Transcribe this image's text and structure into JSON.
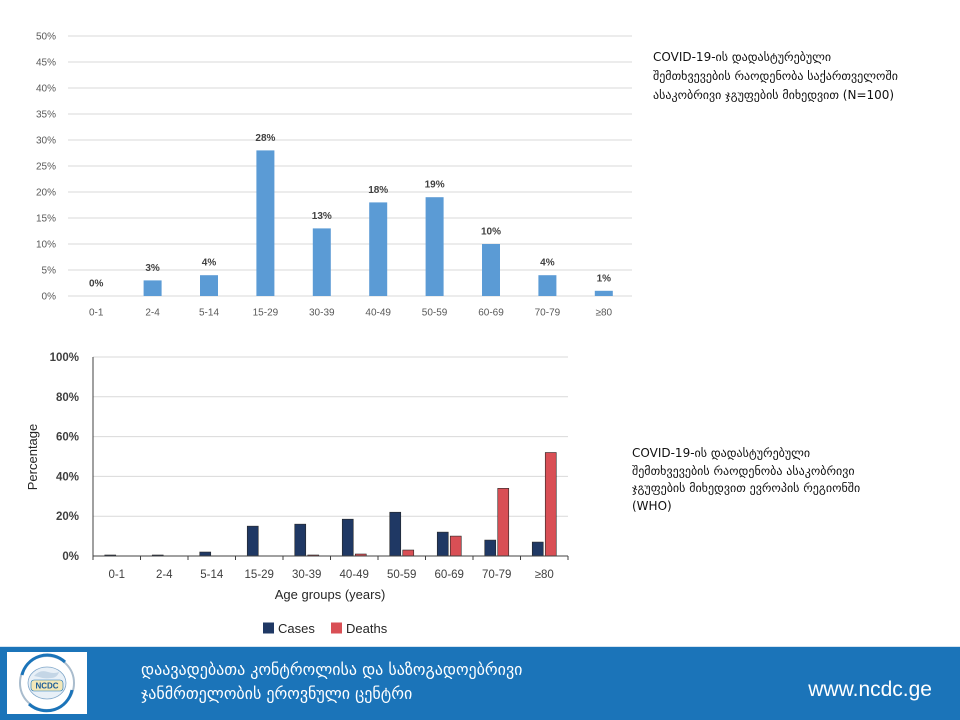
{
  "chart_data": [
    {
      "type": "bar",
      "categories": [
        "0-1",
        "2-4",
        "5-14",
        "15-29",
        "30-39",
        "40-49",
        "50-59",
        "60-69",
        "70-79",
        "≥80"
      ],
      "values": [
        0,
        3,
        4,
        28,
        13,
        18,
        19,
        10,
        4,
        1
      ],
      "data_labels": [
        "0%",
        "3%",
        "4%",
        "28%",
        "13%",
        "18%",
        "19%",
        "10%",
        "4%",
        "1%"
      ],
      "y_tick_labels": [
        "0%",
        "5%",
        "10%",
        "15%",
        "20%",
        "25%",
        "30%",
        "35%",
        "40%",
        "45%",
        "50%"
      ],
      "ylim": [
        0,
        50
      ],
      "grid": true,
      "color": "#5b9bd5"
    },
    {
      "type": "bar",
      "categories": [
        "0-1",
        "2-4",
        "5-14",
        "15-29",
        "30-39",
        "40-49",
        "50-59",
        "60-69",
        "70-79",
        "≥80"
      ],
      "series": [
        {
          "name": "Cases",
          "values": [
            0.5,
            0.5,
            2,
            15,
            16,
            18.5,
            22,
            12,
            8,
            7
          ],
          "color": "#1f3864"
        },
        {
          "name": "Deaths",
          "values": [
            0,
            0,
            0,
            0,
            0.5,
            1,
            3,
            10,
            34,
            52
          ],
          "color": "#d94f55"
        }
      ],
      "y_tick_labels": [
        "0%",
        "20%",
        "40%",
        "60%",
        "80%",
        "100%"
      ],
      "ylim": [
        0,
        100
      ],
      "xlabel": "Age groups (years)",
      "ylabel": "Percentage",
      "grid": true,
      "legend": "bottom"
    }
  ],
  "captions": {
    "georgia": [
      "COVID-19-ის დადასტურებული",
      "შემთხვევების რაოდენობა საქართველოში",
      "ასაკობრივი ჯგუფების მიხედვით (N=100)"
    ],
    "europe": [
      "COVID-19-ის დადასტურებული",
      "შემთხვევების რაოდენობა ასაკობრივი",
      "ჯგუფების მიხედვით ევროპის რეგიონში",
      "(WHO)"
    ]
  },
  "footer": {
    "org_lines": [
      "დაავადებათა კონტროლისა და საზოგადოებრივი",
      "ჯანმრთელობის ეროვნული ცენტრი"
    ],
    "website": "www.ncdc.ge",
    "logo_text": "NCDC",
    "background": "#1b74b9"
  }
}
